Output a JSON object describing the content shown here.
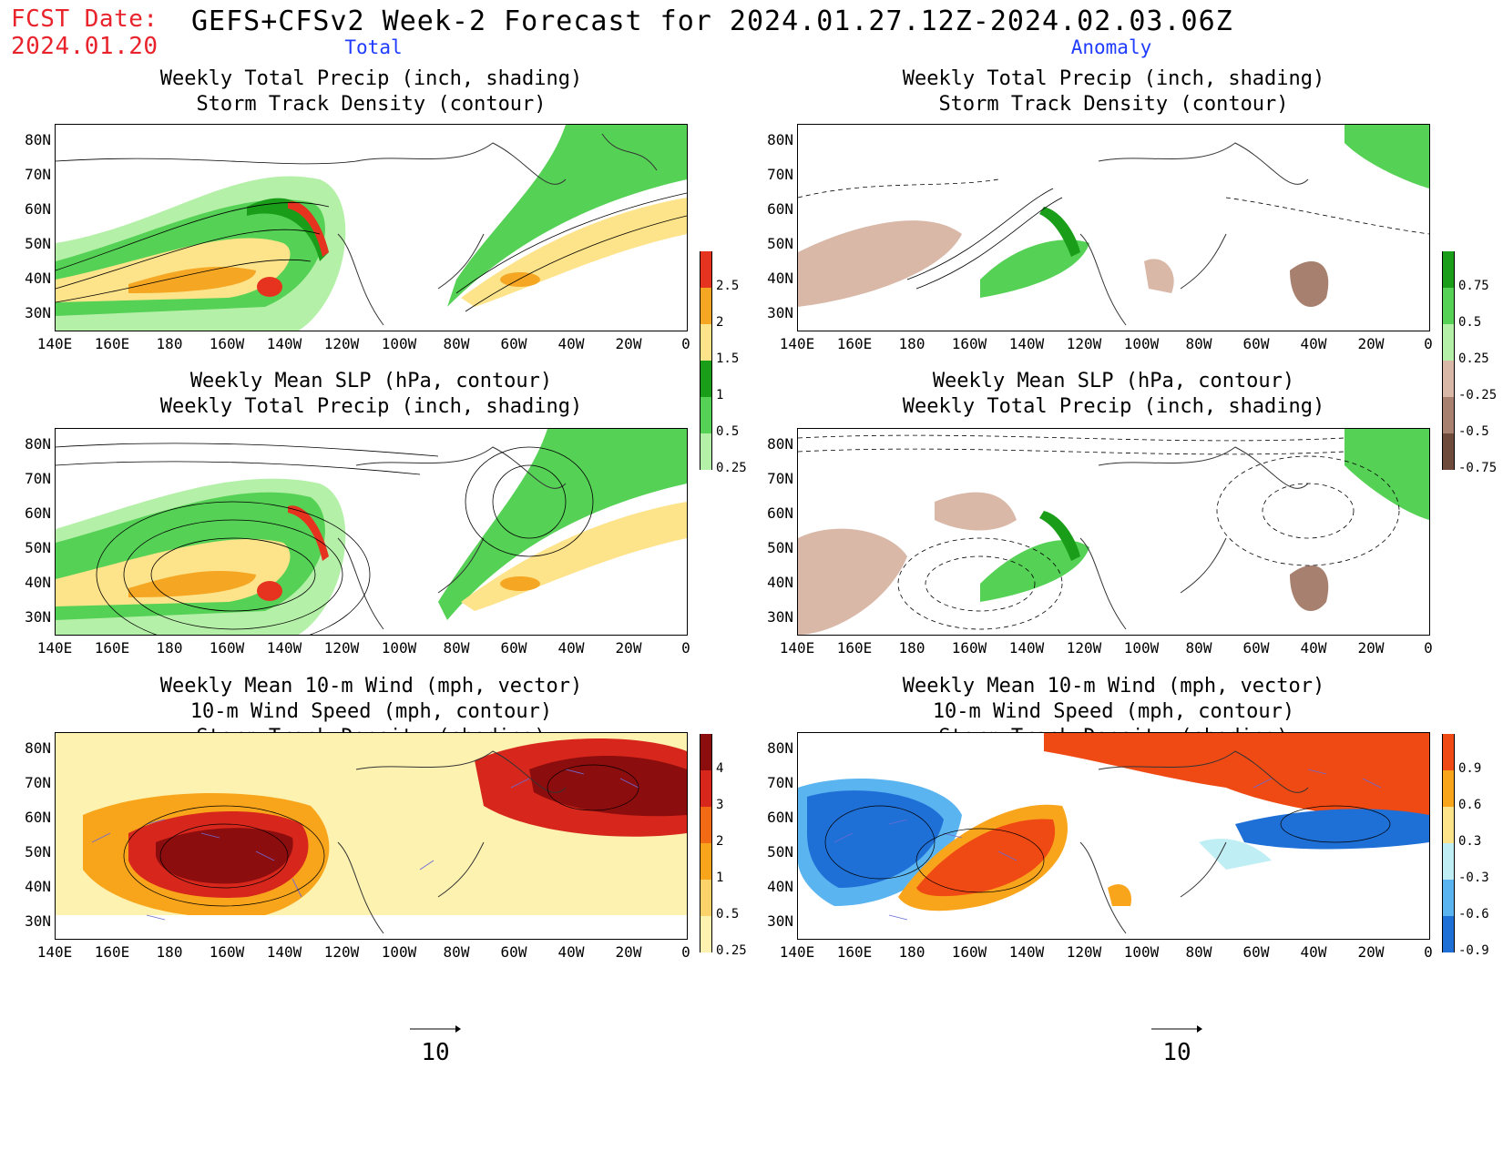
{
  "header": {
    "fcst_label": "FCST Date:",
    "fcst_date": "2024.01.20",
    "title": "GEFS+CFSv2 Week-2 Forecast for 2024.01.27.12Z-2024.02.03.06Z",
    "col_total": "Total",
    "col_anomaly": "Anomaly"
  },
  "axes": {
    "lat_labels": [
      "80N",
      "70N",
      "60N",
      "50N",
      "40N",
      "30N"
    ],
    "lon_labels": [
      "140E",
      "160E",
      "180",
      "160W",
      "140W",
      "120W",
      "100W",
      "80W",
      "60W",
      "40W",
      "20W",
      "0"
    ]
  },
  "panels": {
    "p1": {
      "title1": "Weekly Total Precip (inch, shading)",
      "title2": "Storm Track Density (contour)"
    },
    "p2": {
      "title1": "Weekly Total Precip (inch, shading)",
      "title2": "Storm Track Density (contour)"
    },
    "p3": {
      "title1": "Weekly Mean SLP (hPa, contour)",
      "title2": "Weekly Total Precip (inch, shading)"
    },
    "p4": {
      "title1": "Weekly Mean SLP (hPa, contour)",
      "title2": "Weekly Total Precip (inch, shading)"
    },
    "p5": {
      "title1": "Weekly Mean 10-m Wind (mph, vector)",
      "title2": "10-m Wind Speed (mph, contour)",
      "title3": "Storm Track Density (shading)"
    },
    "p6": {
      "title1": "Weekly Mean 10-m Wind (mph, vector)",
      "title2": "10-m Wind Speed (mph, contour)",
      "title3": "Storm Track Density (shading)"
    }
  },
  "colorbars": {
    "precip_total": [
      "2.5",
      "2",
      "1.5",
      "1",
      "0.5",
      "0.25"
    ],
    "precip_anom": [
      "0.75",
      "0.5",
      "0.25",
      "-0.25",
      "-0.5",
      "-0.75"
    ],
    "storm_total": [
      "4",
      "3",
      "2",
      "1",
      "0.5",
      "0.25"
    ],
    "storm_anom": [
      "0.9",
      "0.6",
      "0.3",
      "-0.3",
      "-0.6",
      "-0.9"
    ]
  },
  "colors": {
    "precip_total": [
      "#e6331f",
      "#f5a623",
      "#fde38a",
      "#1a9e1a",
      "#55d155",
      "#b5f0a8"
    ],
    "precip_anom": [
      "#1a9e1a",
      "#55d155",
      "#b5f0a8",
      "#d9b8a8",
      "#a8806f",
      "#6e4a3a"
    ],
    "storm_total": [
      "#8c0d0d",
      "#d7261b",
      "#f26a14",
      "#f9a51c",
      "#fcd36b",
      "#fdf2b0"
    ],
    "storm_anom": [
      "#f04a14",
      "#f9a51c",
      "#fde38a",
      "#bfeef5",
      "#5ab4f0",
      "#1e6fd6"
    ]
  },
  "vector_ref": {
    "value": "10"
  }
}
